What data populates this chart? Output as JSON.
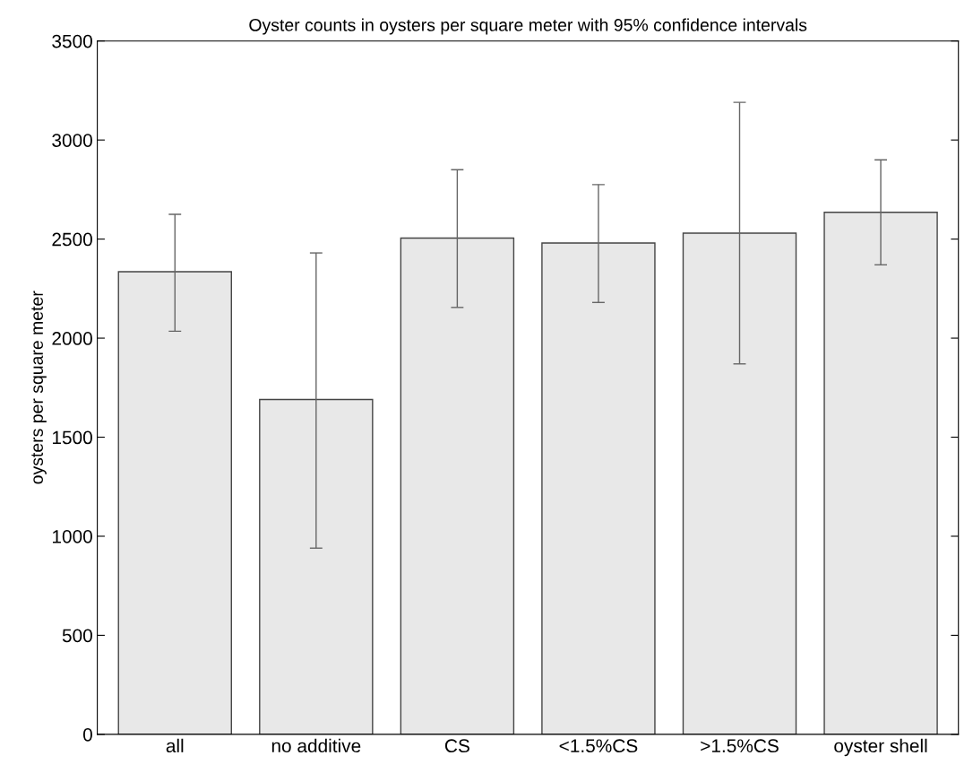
{
  "chart_data": {
    "type": "bar",
    "title": "Oyster counts in oysters per square meter with 95% confidence intervals",
    "ylabel": "oysters per square meter",
    "categories": [
      "all",
      "no additive",
      "CS",
      "<1.5%CS",
      ">1.5%CS",
      "oyster shell"
    ],
    "values": [
      2335,
      1690,
      2505,
      2480,
      2530,
      2635
    ],
    "errors": [
      [
        2035,
        2625
      ],
      [
        940,
        2430
      ],
      [
        2155,
        2850
      ],
      [
        2180,
        2775
      ],
      [
        1870,
        3190
      ],
      [
        2370,
        2900
      ]
    ],
    "color": "#e8e8e8",
    "ylim": [
      0,
      3500
    ],
    "yticks": [
      0,
      500,
      1000,
      1500,
      2000,
      2500,
      3000,
      3500
    ],
    "grid": false
  }
}
